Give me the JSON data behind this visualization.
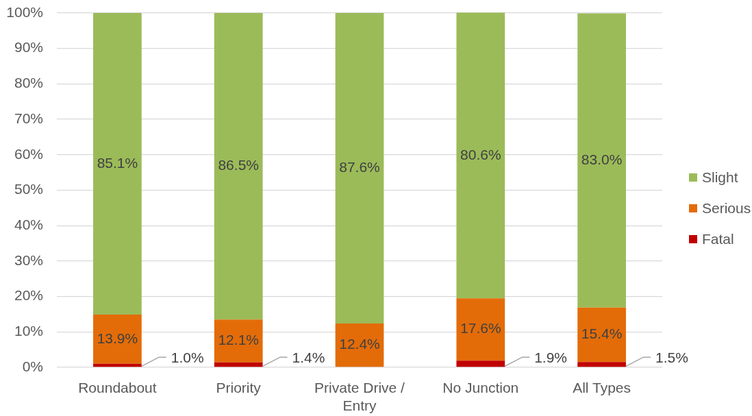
{
  "chart_data": {
    "type": "bar",
    "stacked": true,
    "categories": [
      "Roundabout",
      "Priority",
      "Private Drive / Entry",
      "No Junction",
      "All Types"
    ],
    "series": [
      {
        "name": "Fatal",
        "color": "#c00000",
        "values": [
          1.0,
          1.4,
          null,
          1.9,
          1.5
        ],
        "value_labels": [
          "1.0%",
          "1.4%",
          null,
          "1.9%",
          "1.5%"
        ]
      },
      {
        "name": "Serious",
        "color": "#e36c09",
        "values": [
          13.9,
          12.1,
          12.4,
          17.6,
          15.4
        ],
        "value_labels": [
          "13.9%",
          "12.1%",
          "12.4%",
          "17.6%",
          "15.4%"
        ]
      },
      {
        "name": "Slight",
        "color": "#9bbb59",
        "values": [
          85.1,
          86.5,
          87.6,
          80.6,
          83.0
        ],
        "value_labels": [
          "85.1%",
          "86.5%",
          "87.6%",
          "80.6%",
          "83.0%"
        ]
      }
    ],
    "ylim": [
      0,
      100
    ],
    "yticks": [
      {
        "value": 0,
        "label": "0%"
      },
      {
        "value": 10,
        "label": "10%"
      },
      {
        "value": 20,
        "label": "20%"
      },
      {
        "value": 30,
        "label": "30%"
      },
      {
        "value": 40,
        "label": "40%"
      },
      {
        "value": 50,
        "label": "50%"
      },
      {
        "value": 60,
        "label": "60%"
      },
      {
        "value": 70,
        "label": "70%"
      },
      {
        "value": 80,
        "label": "80%"
      },
      {
        "value": 90,
        "label": "90%"
      },
      {
        "value": 100,
        "label": "100%"
      }
    ],
    "grid": "y",
    "legend": "right"
  }
}
